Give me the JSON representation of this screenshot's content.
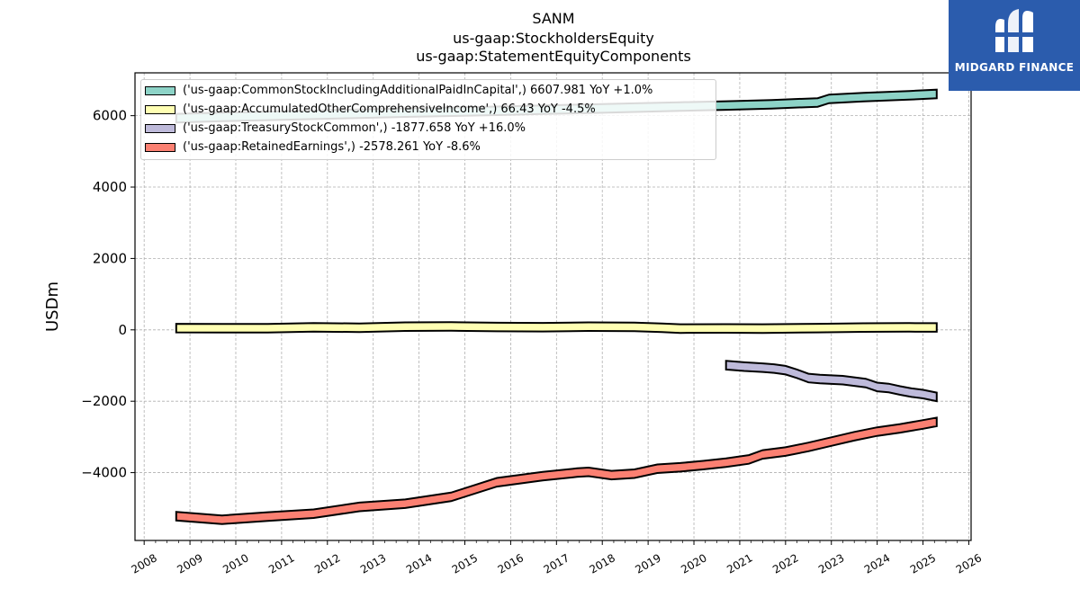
{
  "chart_data": {
    "type": "area",
    "title": "SANM",
    "subtitle_lines": [
      "us-gaap:StockholdersEquity",
      "us-gaap:StatementEquityComponents"
    ],
    "xlabel": "",
    "ylabel": "USDm",
    "xlim": [
      2007.8,
      2026.05
    ],
    "ylim": [
      -5900,
      7200
    ],
    "x_ticks": [
      "2008",
      "2009",
      "2010",
      "2011",
      "2012",
      "2013",
      "2014",
      "2015",
      "2016",
      "2017",
      "2018",
      "2019",
      "2020",
      "2021",
      "2022",
      "2023",
      "2024",
      "2025",
      "2026"
    ],
    "y_ticks": [
      -4000,
      -2000,
      0,
      2000,
      4000,
      6000
    ],
    "y_tick_labels": [
      "−4000",
      "−2000",
      "0",
      "2000",
      "4000",
      "6000"
    ],
    "grid": true,
    "legend_position": "top-left",
    "band_half_width": 120,
    "series": [
      {
        "name": "('us-gaap:CommonStockIncludingAdditionalPaidInCapital',) 6607.981 YoY +1.0%",
        "color": "#8dd3c7",
        "x": [
          2008.7,
          2009.7,
          2010.7,
          2011.7,
          2012.7,
          2013.7,
          2014.7,
          2015.7,
          2016.7,
          2017.7,
          2018.7,
          2019.7,
          2020.7,
          2021.7,
          2022.7,
          2022.95,
          2023.7,
          2024.7,
          2025.3
        ],
        "values": [
          5930,
          5965,
          5995,
          6025,
          6055,
          6085,
          6110,
          6135,
          6165,
          6195,
          6225,
          6255,
          6285,
          6320,
          6370,
          6470,
          6520,
          6570,
          6608
        ]
      },
      {
        "name": "('us-gaap:AccumulatedOtherComprehensiveIncome',) 66.43 YoY -4.5%",
        "color": "#ffffb3",
        "x": [
          2008.7,
          2009.7,
          2010.7,
          2011.7,
          2012.7,
          2013.7,
          2014.7,
          2015.7,
          2016.7,
          2017.7,
          2018.7,
          2019.3,
          2019.7,
          2020.7,
          2021.5,
          2022.7,
          2023.7,
          2024.7,
          2025.3
        ],
        "values": [
          50,
          45,
          45,
          70,
          60,
          90,
          95,
          80,
          75,
          90,
          85,
          60,
          35,
          40,
          35,
          50,
          65,
          70,
          66
        ]
      },
      {
        "name": "('us-gaap:TreasuryStockCommon',) -1877.658 YoY +16.0%",
        "color": "#bebada",
        "x": [
          2020.7,
          2021.1,
          2021.5,
          2021.75,
          2022.0,
          2022.25,
          2022.5,
          2022.75,
          2023.0,
          2023.25,
          2023.5,
          2023.75,
          2024.0,
          2024.25,
          2024.5,
          2024.75,
          2025.0,
          2025.3
        ],
        "values": [
          -990,
          -1030,
          -1060,
          -1085,
          -1130,
          -1230,
          -1350,
          -1380,
          -1395,
          -1410,
          -1450,
          -1490,
          -1600,
          -1630,
          -1700,
          -1760,
          -1800,
          -1878
        ]
      },
      {
        "name": "('us-gaap:RetainedEarnings',) -2578.261 YoY -8.6%",
        "color": "#fb8072",
        "x": [
          2008.7,
          2009.7,
          2010.7,
          2011.7,
          2012.7,
          2013.7,
          2014.7,
          2015.7,
          2016.7,
          2017.45,
          2017.7,
          2018.2,
          2018.7,
          2019.2,
          2019.7,
          2020.2,
          2020.7,
          2021.2,
          2021.5,
          2022.0,
          2022.5,
          2023.0,
          2023.5,
          2024.0,
          2024.5,
          2025.0,
          2025.3
        ],
        "values": [
          -5220,
          -5320,
          -5230,
          -5150,
          -4960,
          -4870,
          -4680,
          -4270,
          -4100,
          -4000,
          -3980,
          -4070,
          -4030,
          -3890,
          -3850,
          -3790,
          -3720,
          -3630,
          -3490,
          -3410,
          -3280,
          -3130,
          -2980,
          -2850,
          -2760,
          -2650,
          -2578
        ]
      }
    ]
  },
  "branding": {
    "logo_text": "MIDGARD FINANCE",
    "logo_color": "#2b5cad"
  }
}
